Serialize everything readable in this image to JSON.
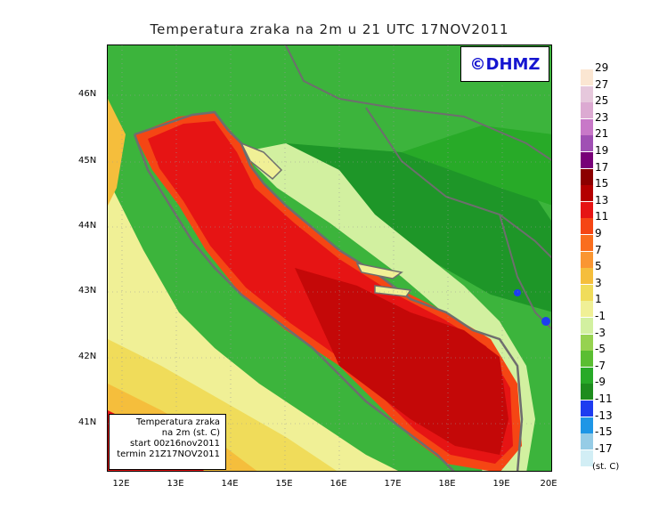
{
  "title": "Temperatura zraka na 2m u 21 UTC 17NOV2011",
  "logo": "©DHMZ",
  "info_box": {
    "line1": "Temperatura zraka",
    "line2": "na 2m (st. C)",
    "line3": "start 00z16nov2011",
    "line4": "termin 21Z17NOV2011"
  },
  "axes": {
    "lat_ticks": [
      "46N",
      "45N",
      "44N",
      "43N",
      "42N",
      "41N"
    ],
    "lon_ticks": [
      "12E",
      "13E",
      "14E",
      "15E",
      "16E",
      "17E",
      "18E",
      "19E",
      "20E"
    ]
  },
  "legend": {
    "units": "(st. C)",
    "labels": [
      "29",
      "27",
      "25",
      "23",
      "21",
      "19",
      "17",
      "15",
      "13",
      "11",
      "9",
      "7",
      "5",
      "3",
      "1",
      "-1",
      "-3",
      "-5",
      "-7",
      "-9",
      "-11",
      "-13",
      "-15",
      "-17"
    ],
    "colors": [
      "#fbe6d2",
      "#e6c8dc",
      "#dcaad2",
      "#c878c8",
      "#a050b4",
      "#780078",
      "#8c0000",
      "#b40000",
      "#e61414",
      "#f54614",
      "#fa6e1e",
      "#fa9632",
      "#f5be3c",
      "#f0dc5a",
      "#f0f096",
      "#d2f0a0",
      "#96d250",
      "#5abe32",
      "#28aa28",
      "#1e8c1e",
      "#1e3cf0",
      "#1e96e6",
      "#96cce6",
      "#d2eef5"
    ]
  },
  "colors": {
    "sea": "#d11010",
    "sea_south": "#c40808",
    "land_green": "#3cb43c",
    "land_dark_green": "#1e9628",
    "coast": "#6e6e6e"
  }
}
